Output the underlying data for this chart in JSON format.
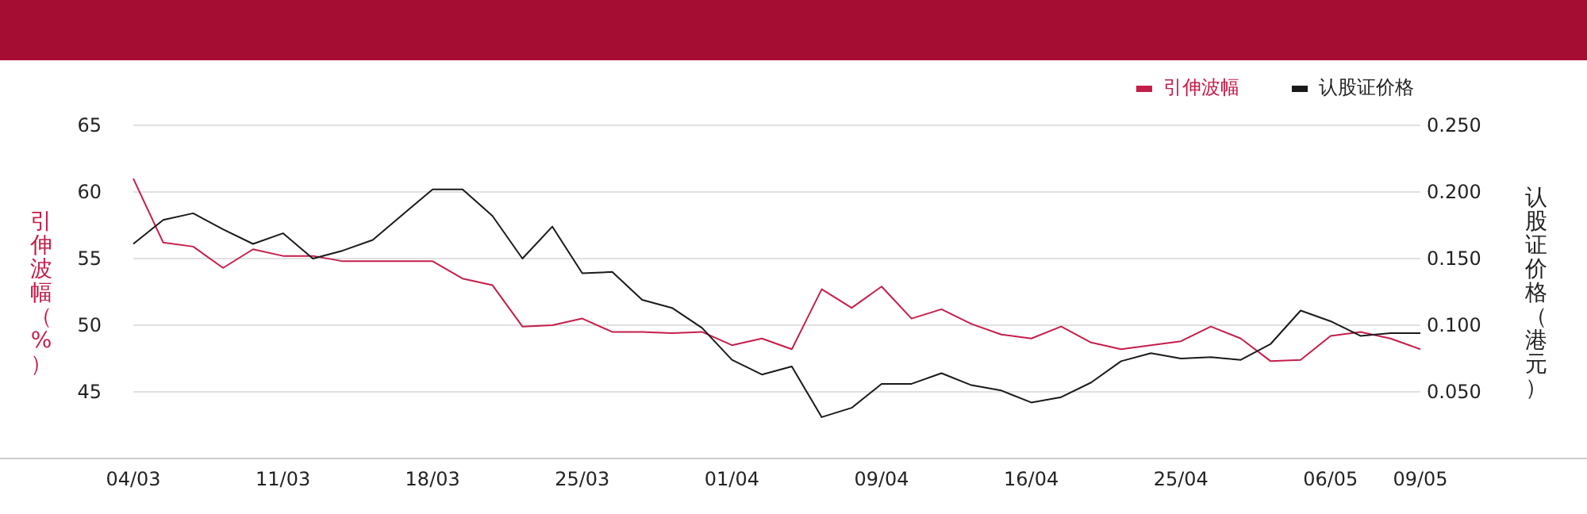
{
  "chart_data": {
    "type": "line",
    "categories": [
      "04/03",
      null,
      null,
      null,
      null,
      "11/03",
      null,
      null,
      null,
      null,
      "18/03",
      null,
      null,
      null,
      null,
      "25/03",
      null,
      null,
      null,
      null,
      "01/04",
      null,
      null,
      null,
      null,
      "09/04",
      null,
      null,
      null,
      null,
      "16/04",
      null,
      null,
      null,
      null,
      "25/04",
      null,
      null,
      null,
      null,
      "06/05",
      null,
      null,
      "09/05"
    ],
    "series": [
      {
        "name": "引伸波幅",
        "color": "#c41e4a",
        "values": [
          61.0,
          56.2,
          55.9,
          54.3,
          55.7,
          55.2,
          55.2,
          54.8,
          54.8,
          54.8,
          54.8,
          53.5,
          53.0,
          49.9,
          50.0,
          50.5,
          49.5,
          49.5,
          49.4,
          49.5,
          48.5,
          49.0,
          48.2,
          52.7,
          51.3,
          52.9,
          50.5,
          51.2,
          50.1,
          49.3,
          49.0,
          49.9,
          48.7,
          48.2,
          48.5,
          48.8,
          49.9,
          49.0,
          47.3,
          47.4,
          49.2,
          49.5,
          49.0,
          48.2
        ]
      },
      {
        "name": "认股证价格",
        "color": "#1a1a1a",
        "axis": "y2",
        "values": [
          0.161,
          0.179,
          0.184,
          0.172,
          0.161,
          0.169,
          0.15,
          0.156,
          0.164,
          0.183,
          0.202,
          0.202,
          0.182,
          0.15,
          0.174,
          0.139,
          0.14,
          0.119,
          0.113,
          0.098,
          0.074,
          0.063,
          0.069,
          0.031,
          0.038,
          0.056,
          0.056,
          0.064,
          0.055,
          0.051,
          0.042,
          0.046,
          0.057,
          0.073,
          0.079,
          0.075,
          0.076,
          0.074,
          0.086,
          0.111,
          0.103,
          0.092,
          0.094,
          0.094
        ]
      }
    ],
    "ylabel": "引伸波幅（%）",
    "y2label": "认股证价格（港元）",
    "ylim": [
      40,
      65
    ],
    "yticks": [
      45,
      50,
      55,
      60,
      65
    ],
    "y2lim": [
      0,
      0.25
    ],
    "y2ticks": [
      {
        "value": 0.05,
        "label": "0.050"
      },
      {
        "value": 0.1,
        "label": "0.100"
      },
      {
        "value": 0.15,
        "label": "0.150"
      },
      {
        "value": 0.2,
        "label": "0.200"
      },
      {
        "value": 0.25,
        "label": "0.250"
      }
    ],
    "grid": "y",
    "legend": "top right"
  }
}
